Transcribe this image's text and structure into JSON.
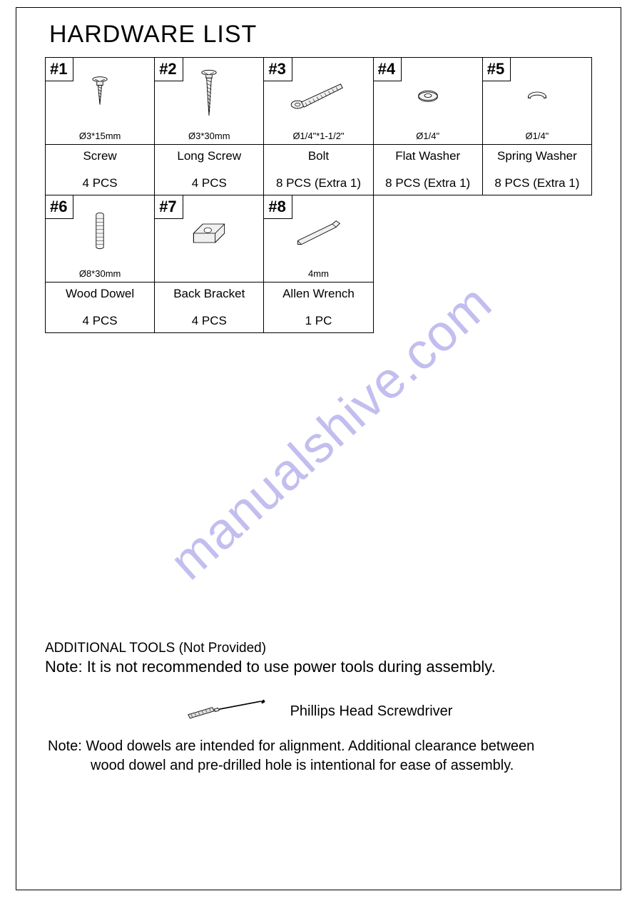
{
  "title": "HARDWARE LIST",
  "items": [
    {
      "tag": "#1",
      "size": "Ø3*15mm",
      "name": "Screw",
      "qty": "4 PCS"
    },
    {
      "tag": "#2",
      "size": "Ø3*30mm",
      "name": "Long Screw",
      "qty": "4 PCS"
    },
    {
      "tag": "#3",
      "size": "Ø1/4\"*1-1/2\"",
      "name": "Bolt",
      "qty": "8 PCS (Extra 1)"
    },
    {
      "tag": "#4",
      "size": "Ø1/4\"",
      "name": "Flat Washer",
      "qty": "8 PCS (Extra 1)"
    },
    {
      "tag": "#5",
      "size": "Ø1/4\"",
      "name": "Spring Washer",
      "qty": "8 PCS (Extra 1)"
    },
    {
      "tag": "#6",
      "size": "Ø8*30mm",
      "name": "Wood Dowel",
      "qty": "4 PCS"
    },
    {
      "tag": "#7",
      "size": "",
      "name": "Back Bracket",
      "qty": "4 PCS"
    },
    {
      "tag": "#8",
      "size": "4mm",
      "name": "Allen Wrench",
      "qty": "1 PC"
    }
  ],
  "watermark": "manualshive.com",
  "additional_tools_header": "ADDITIONAL TOOLS (Not Provided)",
  "note_power_tools": "Note: It is not recommended to use power tools during assembly.",
  "tool_label": "Phillips Head Screwdriver",
  "note_dowels_line1": "Note: Wood dowels are intended for alignment. Additional clearance between",
  "note_dowels_line2": "wood dowel and pre-drilled hole is intentional for ease of assembly.",
  "colors": {
    "border": "#000000",
    "text": "#000000",
    "watermark": "rgba(120,110,220,0.45)",
    "background": "#ffffff"
  }
}
